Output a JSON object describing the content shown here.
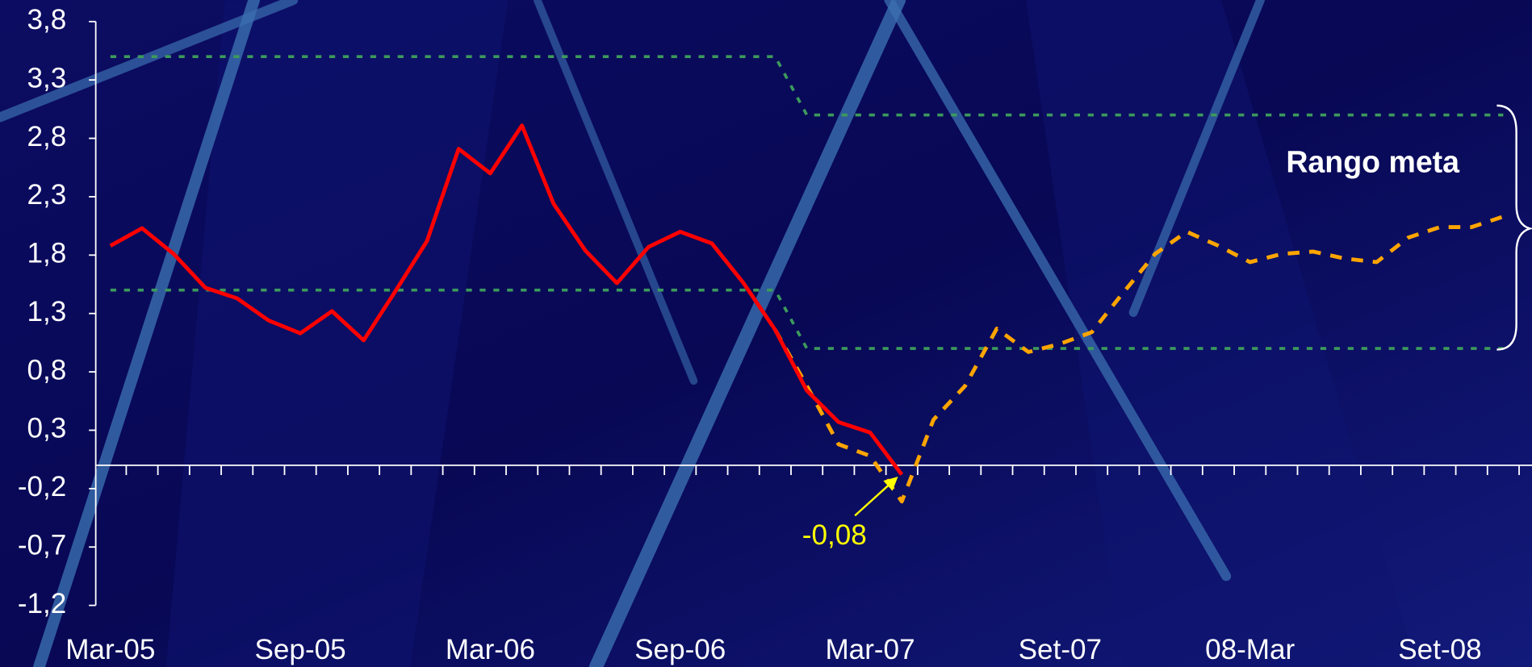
{
  "chart_data": {
    "type": "line",
    "categories": [
      "Mar-05",
      null,
      null,
      null,
      null,
      null,
      "Sep-05",
      null,
      null,
      null,
      null,
      null,
      "Mar-06",
      null,
      null,
      null,
      null,
      null,
      "Sep-06",
      null,
      null,
      null,
      null,
      null,
      "Mar-07",
      null,
      null,
      null,
      null,
      null,
      "Set-07",
      null,
      null,
      null,
      null,
      null,
      "08-Mar",
      null,
      null,
      null,
      null,
      null,
      "Set-08",
      null,
      null
    ],
    "series": [
      {
        "color": "#ff0000",
        "style": "solid",
        "values": [
          1.88,
          2.03,
          1.81,
          1.52,
          1.43,
          1.24,
          1.13,
          1.32,
          1.07,
          1.49,
          1.92,
          2.71,
          2.5,
          2.91,
          2.24,
          1.84,
          1.56,
          1.87,
          2.0,
          1.9,
          1.56,
          1.16,
          0.64,
          0.37,
          0.28,
          -0.08,
          null,
          null,
          null,
          null,
          null,
          null,
          null,
          null,
          null,
          null,
          null,
          null,
          null,
          null,
          null,
          null,
          null,
          null,
          null
        ],
        "value_labels": [
          null,
          null,
          null,
          null,
          null,
          null,
          null,
          null,
          null,
          null,
          null,
          null,
          null,
          null,
          null,
          null,
          null,
          null,
          null,
          null,
          null,
          null,
          null,
          null,
          null,
          "-0,08",
          null,
          null,
          null,
          null,
          null,
          null,
          null,
          null,
          null,
          null,
          null,
          null,
          null,
          null,
          null,
          null,
          null,
          null,
          null
        ]
      },
      {
        "color": "#ffa500",
        "style": "dashed",
        "values": [
          null,
          null,
          null,
          null,
          null,
          null,
          null,
          null,
          null,
          null,
          null,
          null,
          null,
          null,
          null,
          null,
          null,
          null,
          null,
          null,
          null,
          1.16,
          0.68,
          0.18,
          0.08,
          -0.31,
          0.39,
          0.68,
          1.17,
          0.97,
          1.04,
          1.14,
          1.48,
          1.81,
          2.0,
          1.88,
          1.74,
          1.81,
          1.83,
          1.77,
          1.74,
          1.95,
          2.04,
          2.04,
          2.13
        ]
      },
      {
        "color": "#3c9a5c",
        "style": "dotted",
        "values": [
          3.5,
          3.5,
          3.5,
          3.5,
          3.5,
          3.5,
          3.5,
          3.5,
          3.5,
          3.5,
          3.5,
          3.5,
          3.5,
          3.5,
          3.5,
          3.5,
          3.5,
          3.5,
          3.5,
          3.5,
          3.5,
          3.5,
          3.0,
          3.0,
          3.0,
          3.0,
          3.0,
          3.0,
          3.0,
          3.0,
          3.0,
          3.0,
          3.0,
          3.0,
          3.0,
          3.0,
          3.0,
          3.0,
          3.0,
          3.0,
          3.0,
          3.0,
          3.0,
          3.0,
          3.0
        ]
      },
      {
        "color": "#3c9a5c",
        "style": "dotted",
        "values": [
          1.5,
          1.5,
          1.5,
          1.5,
          1.5,
          1.5,
          1.5,
          1.5,
          1.5,
          1.5,
          1.5,
          1.5,
          1.5,
          1.5,
          1.5,
          1.5,
          1.5,
          1.5,
          1.5,
          1.5,
          1.5,
          1.5,
          1.0,
          1.0,
          1.0,
          1.0,
          1.0,
          1.0,
          1.0,
          1.0,
          1.0,
          1.0,
          1.0,
          1.0,
          1.0,
          1.0,
          1.0,
          1.0,
          1.0,
          1.0,
          1.0,
          1.0,
          1.0,
          1.0,
          1.0
        ]
      }
    ],
    "annotation": "Rango meta",
    "ylim": [
      -1.2,
      3.8
    ],
    "yticks": [
      {
        "value": -1.2,
        "label": "-1,2"
      },
      {
        "value": -0.7,
        "label": "-0,7"
      },
      {
        "value": -0.2,
        "label": "-0,2"
      },
      {
        "value": 0.3,
        "label": "0,3"
      },
      {
        "value": 0.8,
        "label": "0,8"
      },
      {
        "value": 1.3,
        "label": "1,3"
      },
      {
        "value": 1.8,
        "label": "1,8"
      },
      {
        "value": 2.3,
        "label": "2,3"
      },
      {
        "value": 2.8,
        "label": "2,8"
      },
      {
        "value": 3.3,
        "label": "3,3"
      },
      {
        "value": 3.8,
        "label": "3,8"
      }
    ],
    "grid": false
  }
}
